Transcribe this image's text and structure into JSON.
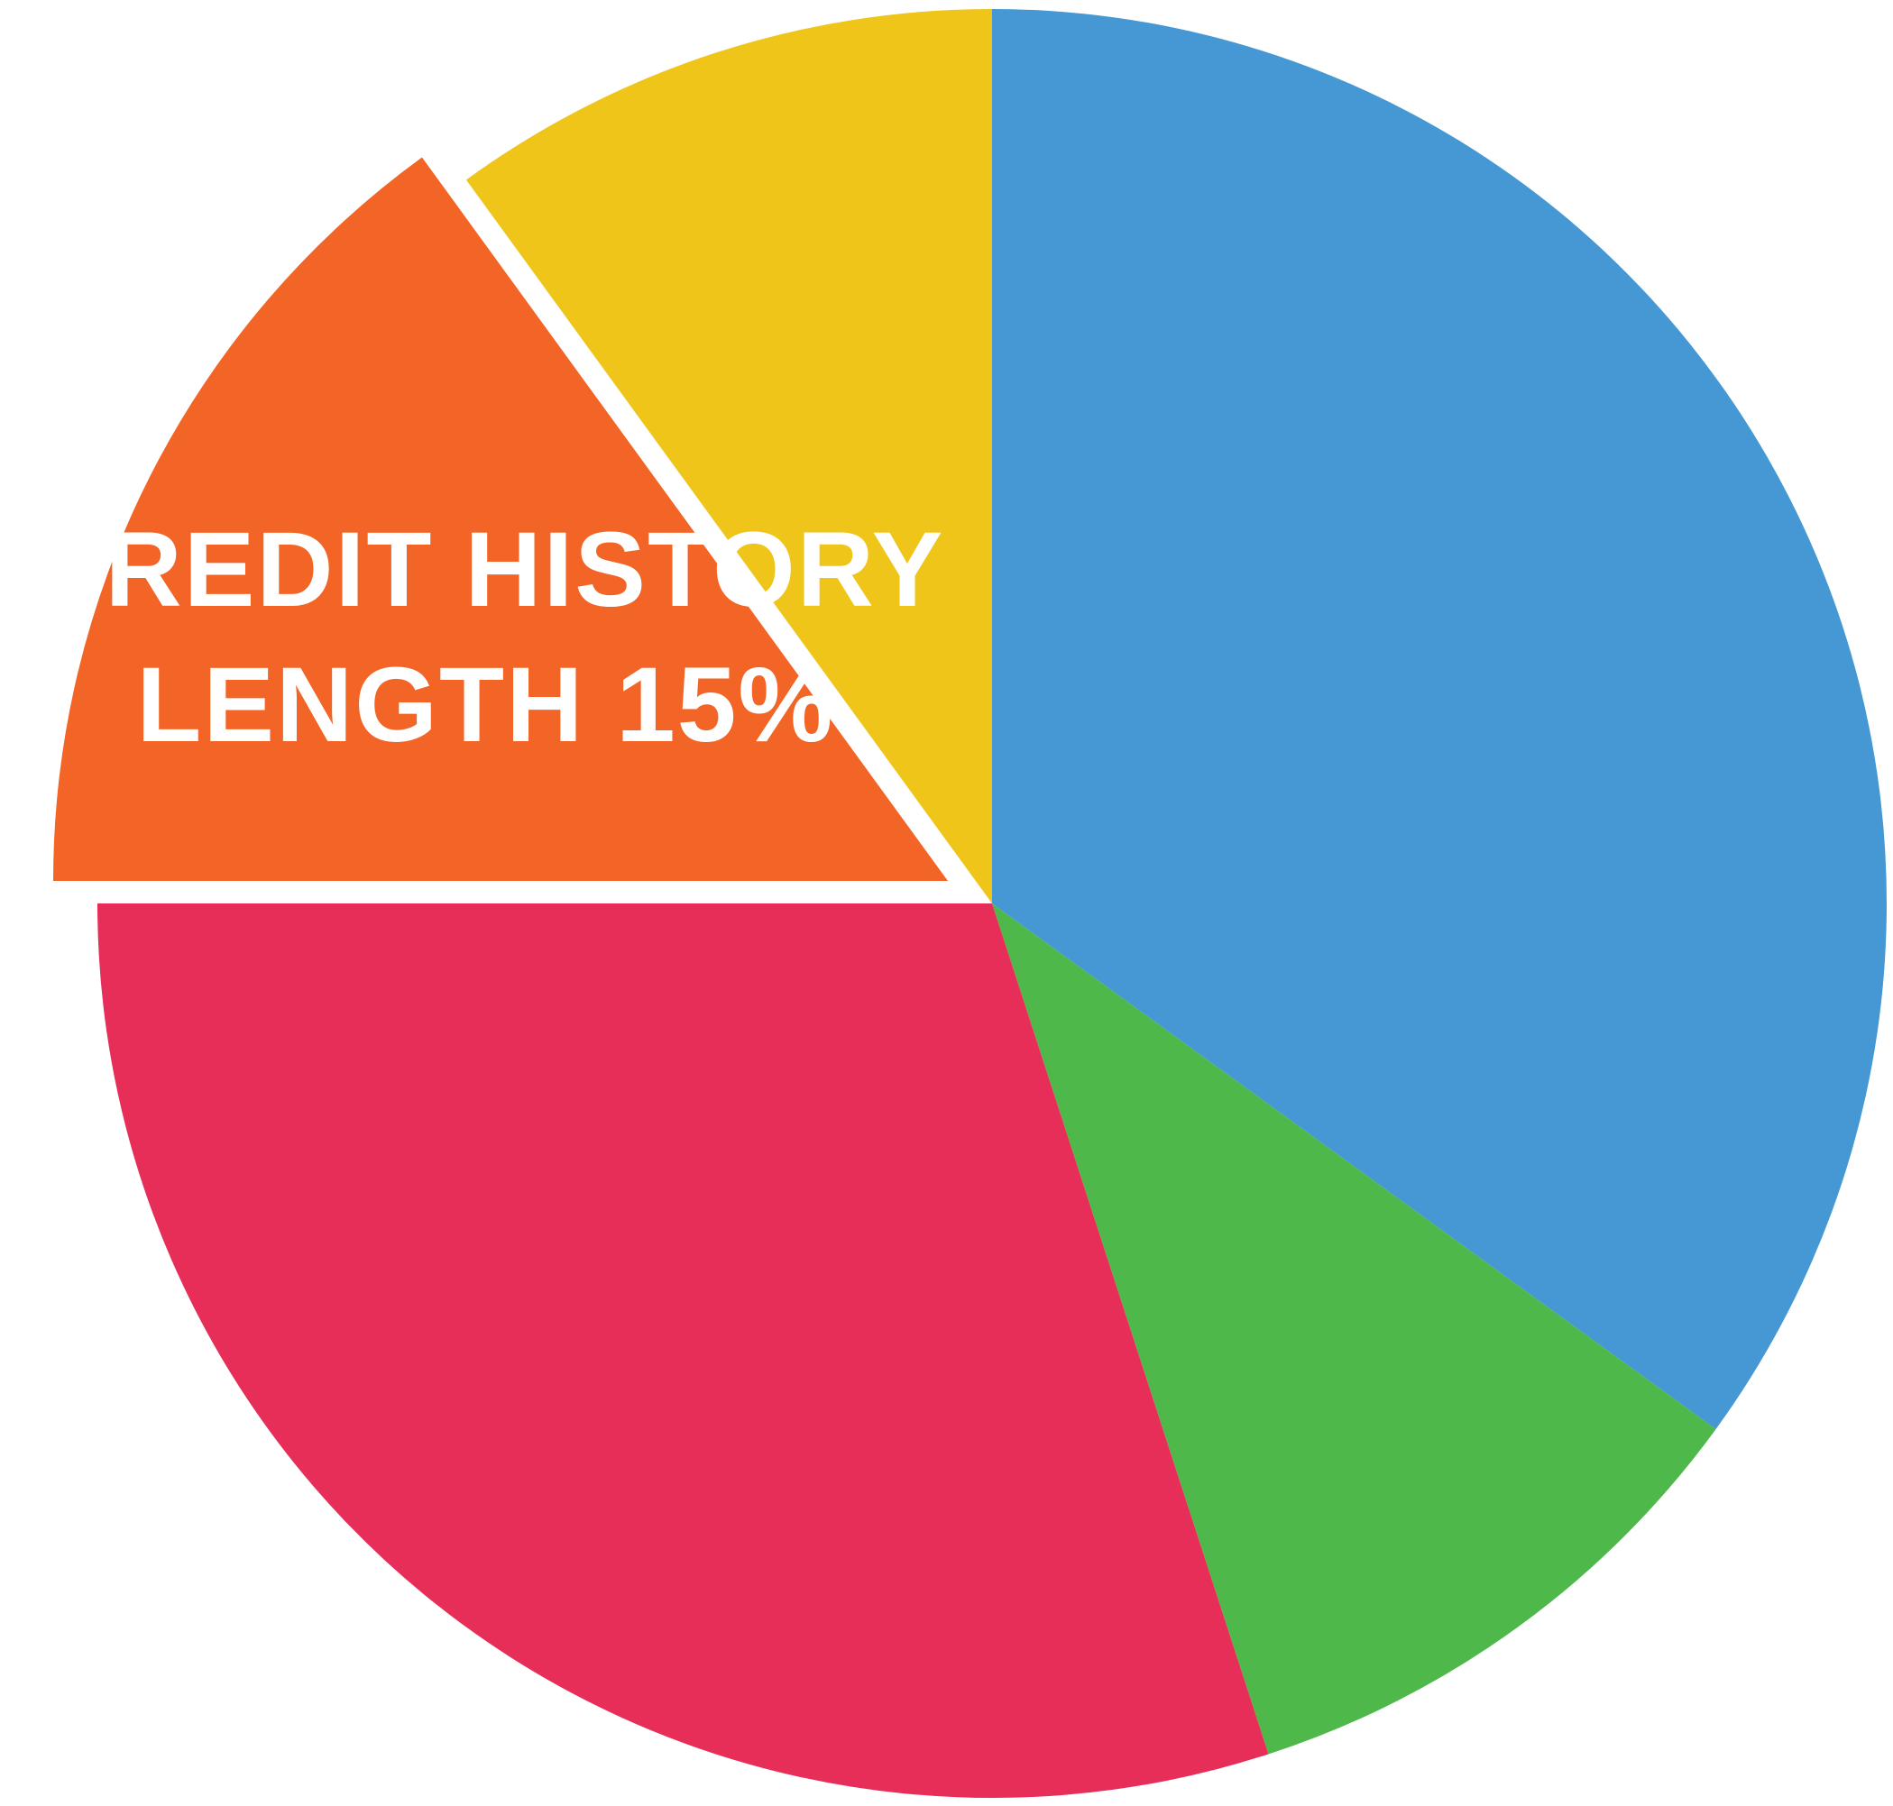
{
  "chart_data": {
    "type": "pie",
    "slices": [
      {
        "value": 35,
        "color": "#4598d3",
        "label_lines": []
      },
      {
        "value": 10,
        "color": "#4fb84b",
        "label_lines": []
      },
      {
        "value": 30,
        "color": "#e62e58",
        "label_lines": []
      },
      {
        "value": 15,
        "color": "#f26526",
        "label_lines": [
          "CREDIT HISTORY",
          "LENGTH 15%"
        ],
        "exploded": true
      },
      {
        "value": 10,
        "color": "#eec518",
        "label_lines": []
      }
    ],
    "start_angle_deg": 0,
    "direction": "clockwise",
    "label_color": "#ffffff"
  }
}
